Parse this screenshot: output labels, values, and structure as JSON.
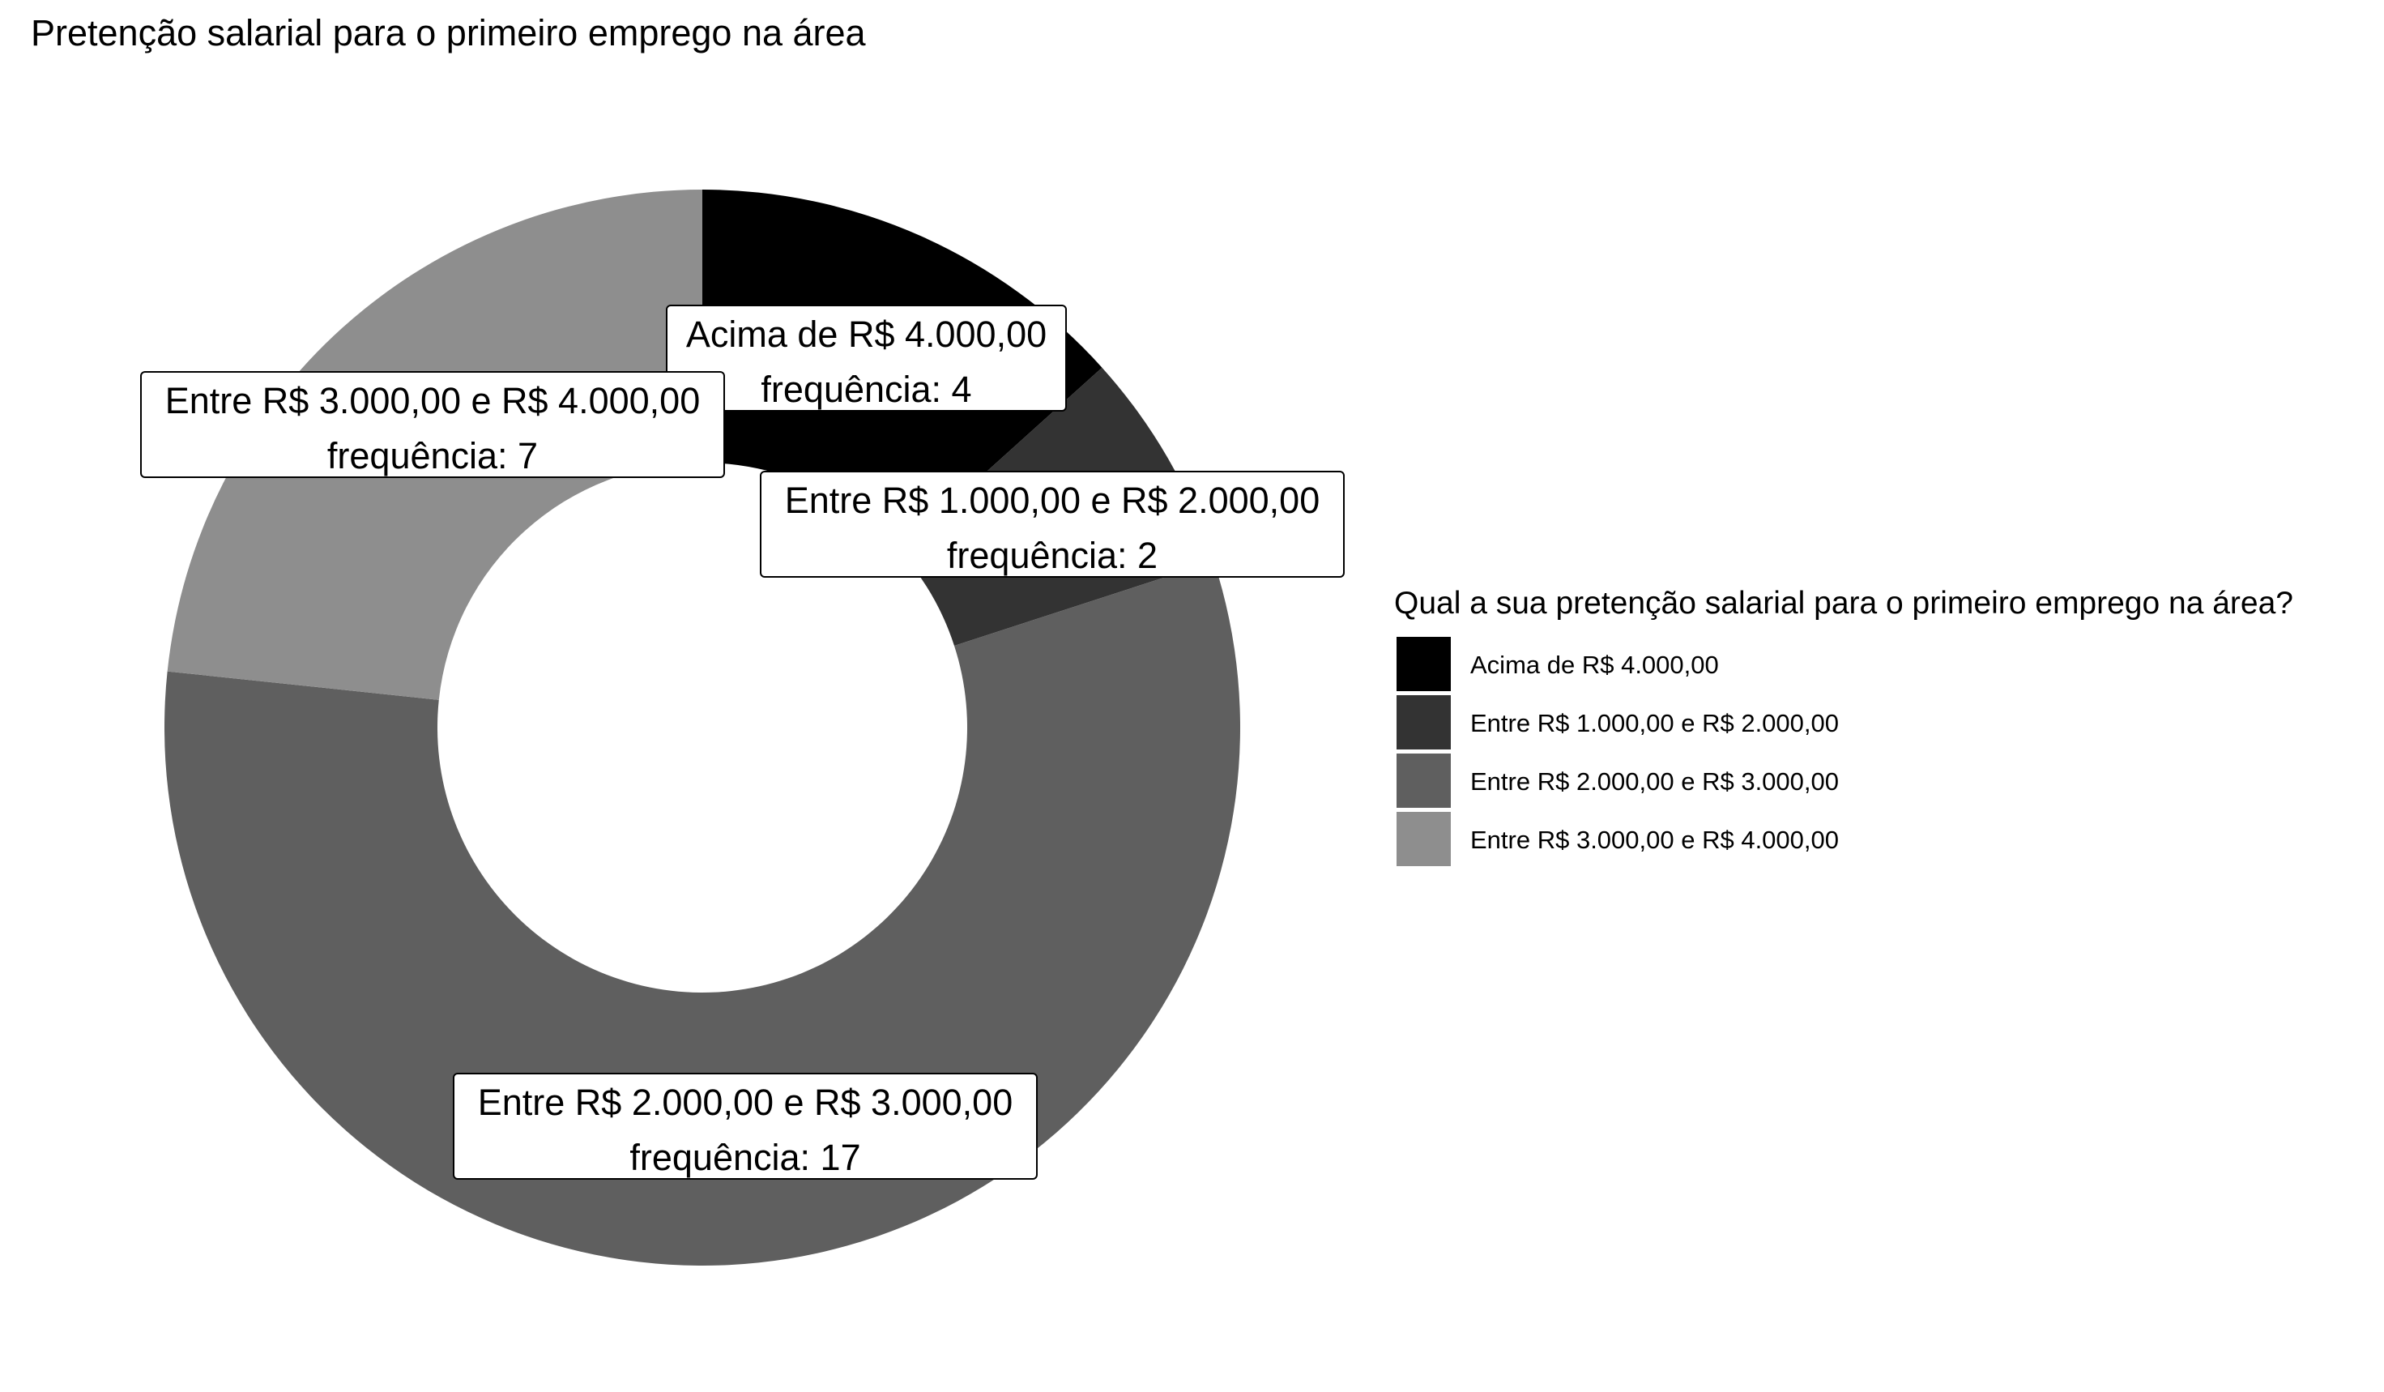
{
  "chart_data": {
    "type": "pie",
    "donut": true,
    "title": "Pretenção salarial para o primeiro emprego na área",
    "categories": [
      "Acima de R$ 4.000,00",
      "Entre R$ 1.000,00 e R$ 2.000,00",
      "Entre R$ 2.000,00 e R$ 3.000,00",
      "Entre R$ 3.000,00 e R$ 4.000,00"
    ],
    "values": [
      4,
      2,
      17,
      7
    ],
    "colors": [
      "#000000",
      "#333333",
      "#5f5f5f",
      "#8e8e8e"
    ],
    "slice_labels": [
      {
        "category": "Acima de R$ 4.000,00",
        "freq_text": "frequência: 4"
      },
      {
        "category": "Entre R$ 1.000,00 e R$ 2.000,00",
        "freq_text": "frequência: 2"
      },
      {
        "category": "Entre R$ 2.000,00 e R$ 3.000,00",
        "freq_text": "frequência: 17"
      },
      {
        "category": "Entre R$ 3.000,00 e R$ 4.000,00",
        "freq_text": "frequência: 7"
      }
    ],
    "legend": {
      "title": "Qual a sua pretenção salarial para o primeiro emprego na área?",
      "position": "right",
      "items": [
        "Acima de R$ 4.000,00",
        "Entre R$ 1.000,00 e R$ 2.000,00",
        "Entre R$ 2.000,00 e R$ 3.000,00",
        "Entre R$ 3.000,00 e R$ 4.000,00"
      ]
    }
  }
}
